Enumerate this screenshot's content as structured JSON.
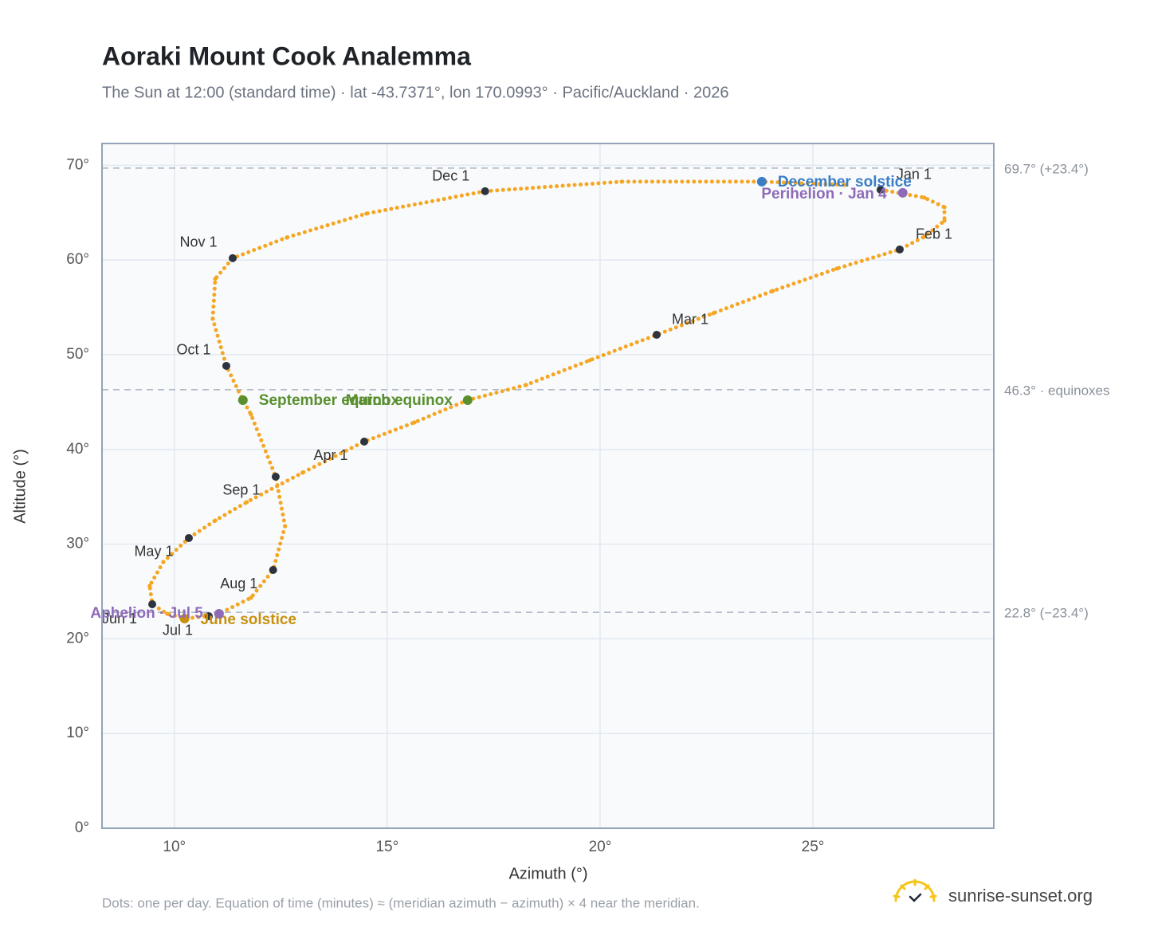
{
  "chart_data": {
    "type": "scatter",
    "title": "Aoraki Mount Cook Analemma",
    "subtitle": "The Sun at 12:00 (standard time) · lat -43.7371°, lon 170.0993° · Pacific/Auckland · 2026",
    "x_label": "Azimuth (°)",
    "y_label": "Altitude (°)",
    "xlim": [
      8.3,
      29.25
    ],
    "ylim": [
      0,
      72.3
    ],
    "xticks": [
      {
        "value": 10,
        "label": "10°"
      },
      {
        "value": 15,
        "label": "15°"
      },
      {
        "value": 20,
        "label": "20°"
      },
      {
        "value": 25,
        "label": "25°"
      }
    ],
    "yticks": [
      {
        "value": 0,
        "label": "0°"
      },
      {
        "value": 10,
        "label": "10°"
      },
      {
        "value": 20,
        "label": "20°"
      },
      {
        "value": 30,
        "label": "30°"
      },
      {
        "value": 40,
        "label": "40°"
      },
      {
        "value": 50,
        "label": "50°"
      },
      {
        "value": 60,
        "label": "60°"
      },
      {
        "value": 70,
        "label": "70°"
      }
    ],
    "grid": true,
    "reference_lines": [
      {
        "value": 69.7,
        "label": "69.7° (+23.4°)"
      },
      {
        "value": 46.3,
        "label": "46.3° · equinoxes"
      },
      {
        "value": 22.8,
        "label": "22.8° (−23.4°)"
      }
    ],
    "series": [
      {
        "color": "#f5a623",
        "x": [
          26.59,
          27.62,
          28.09,
          28.09,
          27.62,
          27.04,
          25.56,
          24.06,
          22.66,
          21.33,
          19.76,
          18.26,
          16.89,
          15.64,
          14.46,
          13.01,
          11.7,
          10.96,
          10.34,
          9.74,
          9.42,
          9.48,
          9.83,
          10.24,
          10.81,
          11.05,
          11.8,
          12.32,
          12.6,
          12.38,
          11.8,
          11.61,
          11.22,
          10.9,
          10.96,
          11.37,
          12.64,
          14.51,
          17.3,
          20.51,
          23.8,
          25.75
        ],
        "y": [
          67.42,
          66.58,
          65.57,
          64.14,
          62.46,
          61.11,
          59.09,
          56.73,
          54.38,
          52.1,
          49.41,
          46.8,
          45.2,
          42.85,
          40.82,
          37.54,
          34.43,
          32.49,
          30.64,
          28.11,
          25.59,
          23.65,
          22.64,
          22.14,
          22.39,
          22.64,
          24.33,
          27.27,
          31.9,
          37.12,
          43.69,
          45.2,
          48.82,
          53.79,
          58.0,
          60.19,
          62.37,
          64.9,
          67.26,
          68.27,
          68.27,
          67.93
        ]
      },
      {
        "color": "#2d3440",
        "labels": [
          "Jan 1",
          "Feb 1",
          "Mar 1",
          "Apr 1",
          "May 1",
          "Jun 1",
          "Jul 1",
          "Aug 1",
          "Sep 1",
          "Oct 1",
          "Nov 1",
          "Dec 1"
        ],
        "x": [
          26.59,
          27.04,
          21.33,
          14.46,
          10.34,
          9.48,
          10.81,
          12.32,
          12.38,
          11.22,
          11.37,
          17.3
        ],
        "y": [
          67.42,
          61.11,
          52.1,
          40.82,
          30.64,
          23.65,
          22.39,
          27.27,
          37.12,
          48.82,
          60.19,
          67.26
        ]
      }
    ],
    "events": [
      {
        "name": "December solstice",
        "x": 23.8,
        "y": 68.27,
        "color": "#3b7dc4"
      },
      {
        "name": "Perihelion · Jan 4",
        "x": 27.11,
        "y": 67.09,
        "color": "#8e6bb8"
      },
      {
        "name": "March equinox",
        "x": 16.89,
        "y": 45.2,
        "color": "#5a8f2e"
      },
      {
        "name": "September equinox",
        "x": 11.61,
        "y": 45.2,
        "color": "#5a8f2e"
      },
      {
        "name": "June solstice",
        "x": 10.24,
        "y": 22.14,
        "color": "#c9900f"
      },
      {
        "name": "Aphelion · Jul 5",
        "x": 11.05,
        "y": 22.64,
        "color": "#8e6bb8"
      }
    ],
    "footnote": "Dots: one per day. Equation of time (minutes) ≈ (meridian azimuth − azimuth) × 4 near the meridian.",
    "source": "sunrise-sunset.org"
  }
}
